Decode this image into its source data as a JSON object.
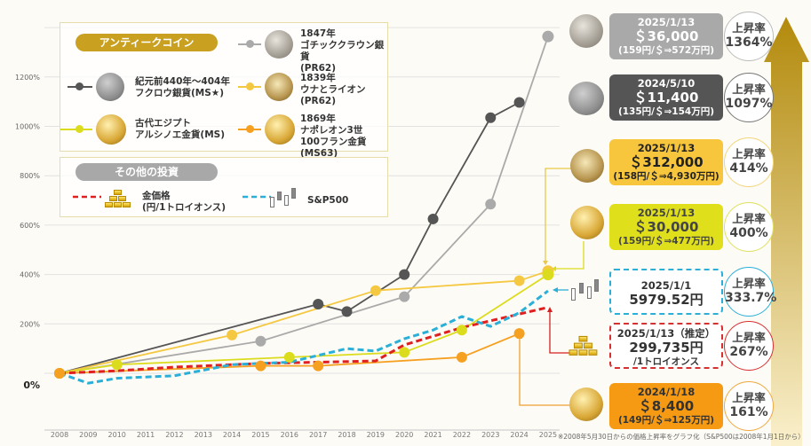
{
  "chart_data": {
    "type": "line",
    "title": "",
    "xlabel": "",
    "ylabel": "",
    "x_ticks": [
      "2008",
      "2009",
      "2010",
      "2011",
      "2012",
      "2013",
      "2014",
      "2015",
      "2016",
      "2017",
      "2018",
      "2019",
      "2020",
      "2021",
      "2022",
      "2023",
      "2024",
      "2025"
    ],
    "y_ticks": [
      {
        "value": 1200,
        "label": "1200%"
      },
      {
        "value": 1000,
        "label": "1000%"
      },
      {
        "value": 800,
        "label": "800%"
      },
      {
        "value": 600,
        "label": "600%"
      },
      {
        "value": 400,
        "label": "400%"
      },
      {
        "value": 200,
        "label": "200%"
      },
      {
        "value": 0,
        "label": "0%"
      }
    ],
    "ylim": [
      -100,
      1400
    ],
    "xlim": [
      2008,
      2025
    ],
    "grid": true,
    "series": [
      {
        "name": "1847年 ゴチッククラウン銀貨(PR62)",
        "color": "#aaaaaa",
        "style": "solid",
        "markers": true,
        "points": [
          [
            2008,
            0
          ],
          [
            2015,
            130
          ],
          [
            2020,
            310
          ],
          [
            2023,
            685
          ],
          [
            2025,
            1364
          ]
        ]
      },
      {
        "name": "紀元前440年〜404年 フクロウ銀貨(MS★)",
        "color": "#555555",
        "style": "solid",
        "markers": true,
        "points": [
          [
            2008,
            0
          ],
          [
            2017,
            280
          ],
          [
            2018,
            250
          ],
          [
            2020,
            400
          ],
          [
            2021,
            625
          ],
          [
            2023,
            1035
          ],
          [
            2024,
            1097
          ]
        ]
      },
      {
        "name": "1839年 ウナとライオン(PR62)",
        "color": "#f5c842",
        "style": "solid",
        "markers": true,
        "points": [
          [
            2008,
            0
          ],
          [
            2014,
            155
          ],
          [
            2019,
            335
          ],
          [
            2024,
            375
          ],
          [
            2025,
            414
          ]
        ]
      },
      {
        "name": "古代エジプト アルシノエ金貨(MS)",
        "color": "#dcdc1e",
        "style": "solid",
        "markers": true,
        "points": [
          [
            2008,
            0
          ],
          [
            2010,
            35
          ],
          [
            2016,
            65
          ],
          [
            2020,
            85
          ],
          [
            2022,
            175
          ],
          [
            2025,
            400
          ]
        ]
      },
      {
        "name": "1869年 ナポレオン3世 100フラン金貨(MS63)",
        "color": "#f5a020",
        "style": "solid",
        "markers": true,
        "points": [
          [
            2008,
            0
          ],
          [
            2015,
            30
          ],
          [
            2017,
            30
          ],
          [
            2022,
            65
          ],
          [
            2024,
            161
          ]
        ]
      },
      {
        "name": "金価格(円/1トロイオンス)",
        "color": "#e02020",
        "style": "dashed",
        "markers": false,
        "points": [
          [
            2008,
            0
          ],
          [
            2010,
            10
          ],
          [
            2012,
            25
          ],
          [
            2014,
            35
          ],
          [
            2015,
            40
          ],
          [
            2019,
            50
          ],
          [
            2020,
            115
          ],
          [
            2022,
            185
          ],
          [
            2024,
            240
          ],
          [
            2025,
            267
          ]
        ]
      },
      {
        "name": "S&P500",
        "color": "#2ab0d8",
        "style": "dashed",
        "markers": false,
        "points": [
          [
            2008,
            0
          ],
          [
            2009,
            -40
          ],
          [
            2010,
            -20
          ],
          [
            2012,
            -10
          ],
          [
            2014,
            35
          ],
          [
            2016,
            45
          ],
          [
            2018,
            100
          ],
          [
            2019,
            90
          ],
          [
            2020,
            140
          ],
          [
            2021,
            175
          ],
          [
            2022,
            230
          ],
          [
            2023,
            190
          ],
          [
            2024,
            245
          ],
          [
            2025,
            333.7
          ]
        ]
      }
    ]
  },
  "legend": {
    "antique_header": "アンティークコイン",
    "other_header": "その他の投資",
    "items": {
      "gothic": [
        "1847年",
        "ゴチッククラウン銀貨",
        "(PR62)"
      ],
      "owl": [
        "紀元前440年〜404年",
        "フクロウ銀貨(MS★)"
      ],
      "una": [
        "1839年",
        "ウナとライオン",
        "(PR62)"
      ],
      "arsinoe": [
        "古代エジプト",
        "アルシノエ金貨(MS)"
      ],
      "napoleon": [
        "1869年",
        "ナポレオン3世",
        "100フラン金貨(MS63)"
      ],
      "gold": [
        "金価格",
        "(円/1トロイオンス)"
      ],
      "sp500": [
        "S&P500"
      ]
    }
  },
  "cards": [
    {
      "id": "gothic",
      "date": "2025/1/13",
      "price": "＄36,000",
      "note": "(159円/＄⇒572万円)",
      "rate_label": "上昇率",
      "rate": "1364%",
      "bg": "#a9a9a9",
      "fg": "#ffffff",
      "ring": "#bbbbbb"
    },
    {
      "id": "owl",
      "date": "2024/5/10",
      "price": "＄11,400",
      "note": "(135円/＄⇒154万円)",
      "rate_label": "上昇率",
      "rate": "1097%",
      "bg": "#555555",
      "fg": "#ffffff",
      "ring": "#777777"
    },
    {
      "id": "una",
      "date": "2025/1/13",
      "price": "＄312,000",
      "note": "(158円/＄⇒4,930万円)",
      "rate_label": "上昇率",
      "rate": "414%",
      "bg": "#f7c63c",
      "fg": "#222222",
      "ring": "#f3d57a"
    },
    {
      "id": "arsinoe",
      "date": "2025/1/13",
      "price": "＄30,000",
      "note": "(159円/＄⇒477万円)",
      "rate_label": "上昇率",
      "rate": "400%",
      "bg": "#dfdf1c",
      "fg": "#444444",
      "ring": "#e0e060"
    },
    {
      "id": "sp500",
      "date": "2025/1/1",
      "price": "5979.52円",
      "note": "",
      "rate_label": "上昇率",
      "rate": "333.7%",
      "bg": "#ffffff",
      "fg": "#333333",
      "ring": "#2ab0d8",
      "dashed": true
    },
    {
      "id": "gold",
      "date": "2025/1/13（推定）",
      "price": "299,735円",
      "note": "/1トロイオンス",
      "rate_label": "上昇率",
      "rate": "267%",
      "bg": "#ffffff",
      "fg": "#333333",
      "ring": "#d83030",
      "dashed": true
    },
    {
      "id": "napoleon",
      "date": "2024/1/18",
      "price": "＄8,400",
      "note": "(149円/＄⇒125万円)",
      "rate_label": "上昇率",
      "rate": "161%",
      "bg": "#f59a12",
      "fg": "#333333",
      "ring": "#f0a840"
    }
  ],
  "footnote": "※2008年5月30日からの価格上昇率をグラフ化（S&P500は2008年1月1日から）",
  "colors": {
    "background": "#fdfbf5",
    "grid": "#e2e2e2",
    "arrow_top": "#b8900e",
    "arrow_bottom": "#f8ecc4",
    "legend_gold": "#c9a020",
    "legend_gray": "#a8a8a8"
  }
}
